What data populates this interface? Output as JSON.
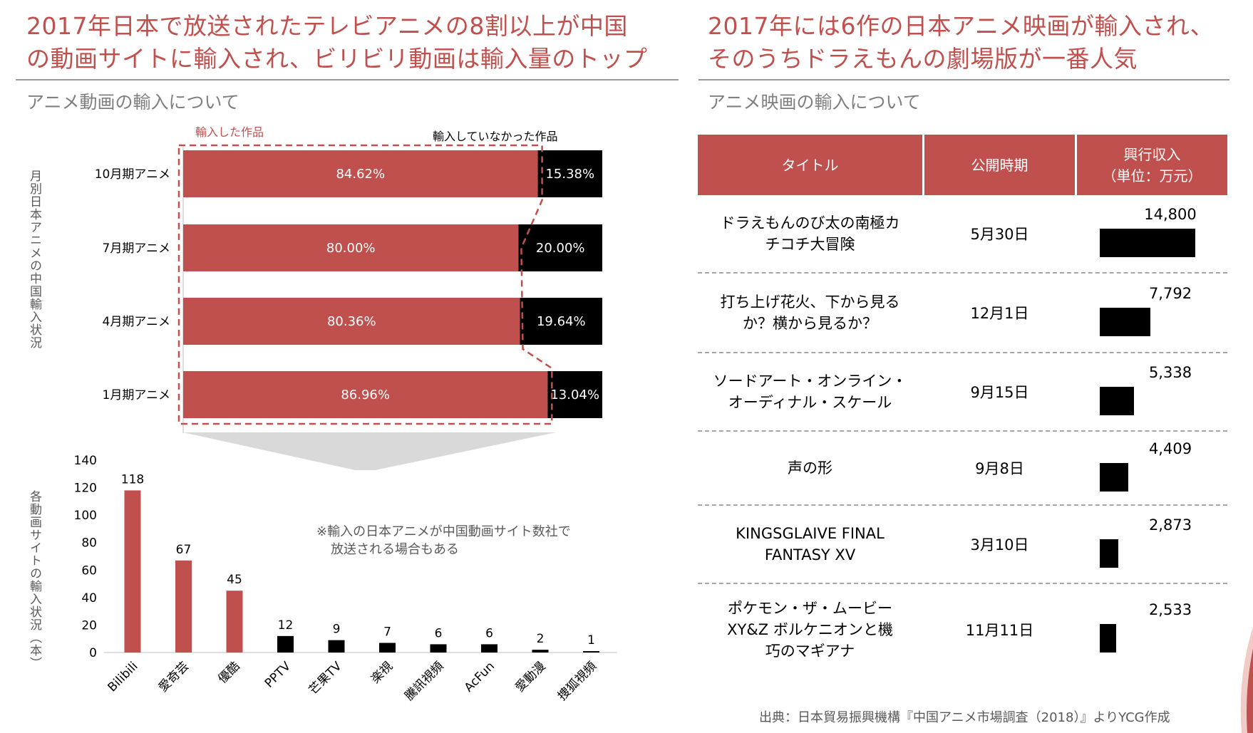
{
  "left": {
    "title_line1": "2017年日本で放送されたテレビアニメの8割以上が中国",
    "title_line2": "の動画サイトに輸入され、ビリビリ動画は輸入量のトップ",
    "subtitle": "アニメ動画の輸入について",
    "legend_imported": "輸入した作品",
    "legend_not_imported": "輸入していなかった作品",
    "top_axis_label": "月別日本アニメの中国輸入状況",
    "bottom_axis_label": "各動画サイトの輸入状況（本）",
    "note_line1": "※輸入の日本アニメが中国動画サイト数社で",
    "note_line2": "放送される場合もある"
  },
  "right": {
    "title_line1": "2017年には6作の日本アニメ映画が輸入され、",
    "title_line2": "そのうちドラえもんの劇場版が一番人気",
    "subtitle": "アニメ映画の輸入について",
    "headers": {
      "title": "タイトル",
      "date": "公開時期",
      "revenue_line1": "興行収入",
      "revenue_line2": "（単位：万元）"
    },
    "rows": [
      {
        "title": "ドラえもんのび太の南極カ\nチコチ大冒険",
        "date": "5月30日",
        "value_label": "14,800"
      },
      {
        "title": "打ち上げ花火、下から見る\nか？横から見るか？",
        "date": "12月1日",
        "value_label": "7,792"
      },
      {
        "title": "ソードアート・オンライン・\nオーディナル・スケール",
        "date": "9月15日",
        "value_label": "5,338"
      },
      {
        "title": "声の形",
        "date": "9月8日",
        "value_label": "4,409"
      },
      {
        "title": "KINGSGLAIVE FINAL\nFANTASY XV",
        "date": "3月10日",
        "value_label": "2,873"
      },
      {
        "title": "ポケモン・ザ・ムービー\nXY&Z ボルケニオンと機\n巧のマギアナ",
        "date": "11月11日",
        "value_label": "2,533"
      }
    ],
    "source": "出典：日本貿易振興機構『中国アニメ市場調査（2018）』よりYCG作成"
  },
  "colors": {
    "accent": "#c0504d",
    "dark": "#000000",
    "grey_text": "#7f7f7f"
  },
  "chart_data": [
    {
      "type": "bar",
      "orientation": "horizontal",
      "stacked": true,
      "categories": [
        "10月期アニメ",
        "7月期アニメ",
        "4月期アニメ",
        "1月期アニメ"
      ],
      "series": [
        {
          "name": "輸入した作品",
          "values": [
            84.62,
            80.0,
            80.36,
            86.96
          ],
          "labels": [
            "84.62%",
            "80.00%",
            "80.36%",
            "86.96%"
          ],
          "color": "#c0504d"
        },
        {
          "name": "輸入していなかった作品",
          "values": [
            15.38,
            20.0,
            19.64,
            13.04
          ],
          "labels": [
            "15.38%",
            "20.00%",
            "19.64%",
            "13.04%"
          ],
          "color": "#000000"
        }
      ],
      "xlim": [
        0,
        100
      ],
      "ylabel": "月別日本アニメの中国輸入状況",
      "legend": "top"
    },
    {
      "type": "bar",
      "categories": [
        "Bilibili",
        "愛奇芸",
        "優酷",
        "PPTV",
        "芒果TV",
        "楽視",
        "騰訊視頻",
        "AcFun",
        "愛動漫",
        "捜狐視頻"
      ],
      "values": [
        118,
        67,
        45,
        12,
        9,
        7,
        6,
        6,
        2,
        1
      ],
      "colors": [
        "#c0504d",
        "#c0504d",
        "#c0504d",
        "#000000",
        "#000000",
        "#000000",
        "#000000",
        "#000000",
        "#000000",
        "#000000"
      ],
      "ylim": [
        0,
        140
      ],
      "yticks": [
        0,
        20,
        40,
        60,
        80,
        100,
        120,
        140
      ],
      "ylabel": "各動画サイトの輸入状況（本）",
      "grid": false
    },
    {
      "type": "bar",
      "orientation": "horizontal",
      "categories": [
        "ドラえもんのび太の南極カチコチ大冒険",
        "打ち上げ花火、下から見るか？横から見るか？",
        "ソードアート・オンライン・オーディナル・スケール",
        "声の形",
        "KINGSGLAIVE FINAL FANTASY XV",
        "ポケモン・ザ・ムービーXY&Z ボルケニオンと機巧のマギアナ"
      ],
      "values": [
        14800,
        7792,
        5338,
        4409,
        2873,
        2533
      ],
      "ylabel": "興行収入（単位：万元）"
    }
  ]
}
